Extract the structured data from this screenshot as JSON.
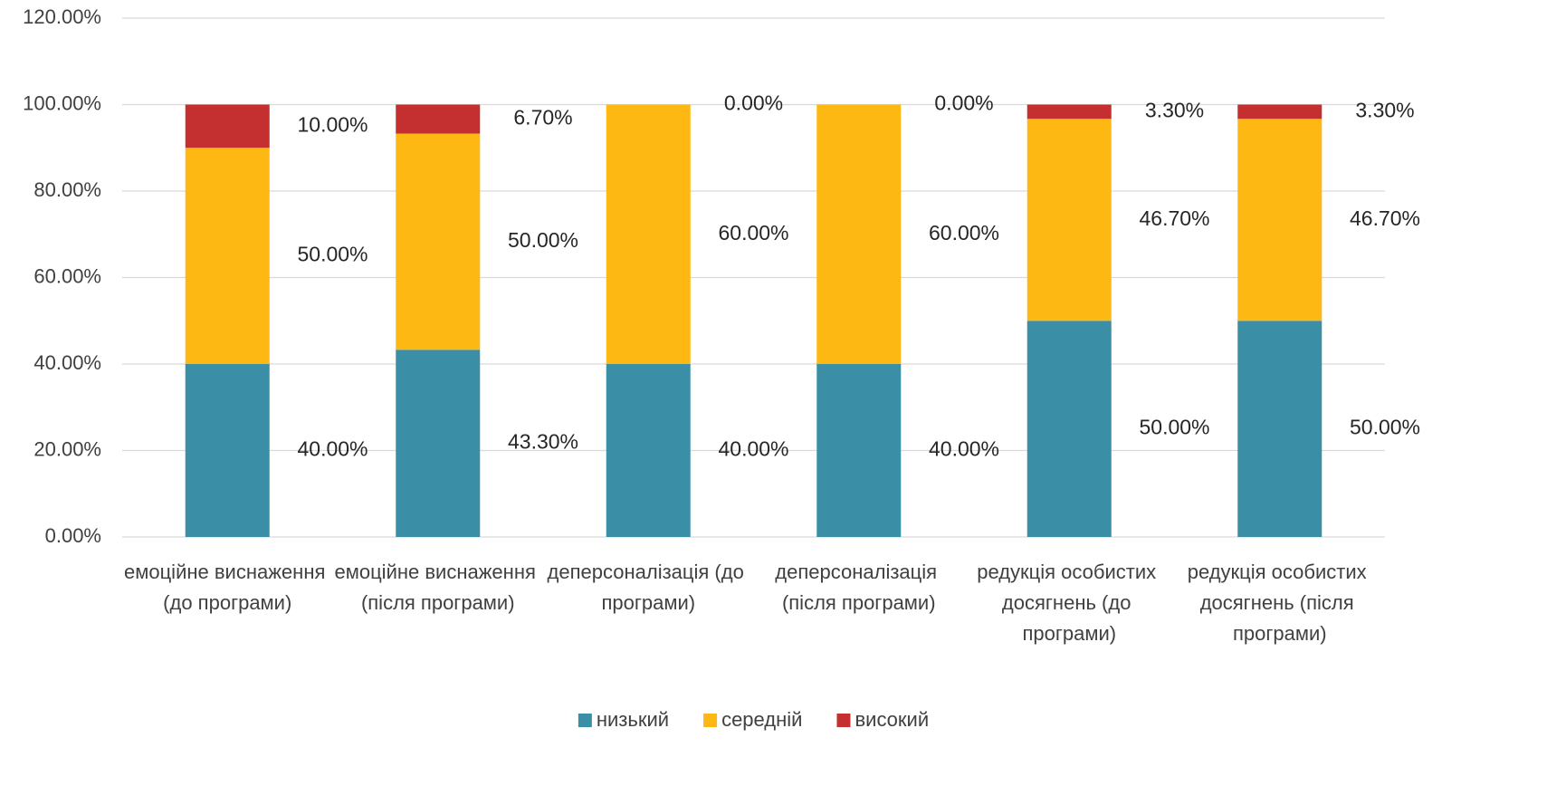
{
  "chart_data": {
    "type": "stacked_bar",
    "categories": [
      "емоційне виснаження (до програми)",
      "емоційне виснаження (після програми)",
      "деперсоналізація (до програми)",
      "деперсоналізація (після програми)",
      "редукція особистих досягнень (до програми)",
      "редукція особистих досягнень (після програми)"
    ],
    "series": [
      {
        "name": "низький",
        "color": "#3a8fa6",
        "values": [
          40,
          43.3,
          40,
          40,
          50,
          50
        ],
        "value_labels": [
          "40.00%",
          "43.30%",
          "40.00%",
          "40.00%",
          "50.00%",
          "50.00%"
        ]
      },
      {
        "name": "середній",
        "color": "#fdb813",
        "values": [
          50,
          50,
          60,
          60,
          46.7,
          46.7
        ],
        "value_labels": [
          "50.00%",
          "50.00%",
          "60.00%",
          "60.00%",
          "46.70%",
          "46.70%"
        ]
      },
      {
        "name": "високий",
        "color": "#c3302f",
        "values": [
          10,
          6.7,
          0,
          0,
          3.3,
          3.3
        ],
        "value_labels": [
          "10.00%",
          "6.70%",
          "0.00%",
          "0.00%",
          "3.30%",
          "3.30%"
        ]
      }
    ],
    "ylim": [
      0,
      120
    ],
    "yticks": [
      {
        "value": 0,
        "label": "0.00%"
      },
      {
        "value": 20,
        "label": "20.00%"
      },
      {
        "value": 40,
        "label": "40.00%"
      },
      {
        "value": 60,
        "label": "60.00%"
      },
      {
        "value": 80,
        "label": "80.00%"
      },
      {
        "value": 100,
        "label": "100.00%"
      },
      {
        "value": 120,
        "label": "120.00%"
      }
    ],
    "grid": true,
    "legend": "bottom"
  }
}
